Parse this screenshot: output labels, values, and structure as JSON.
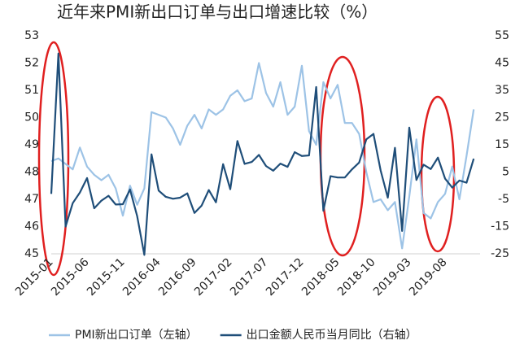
{
  "chart_data": {
    "type": "line",
    "title": "近年来PMI新出口订单与出口增速比较（%）",
    "categories": [
      "2015-01",
      null,
      null,
      null,
      null,
      "2015-06",
      null,
      null,
      null,
      null,
      "2015-11",
      null,
      null,
      null,
      null,
      "2016-04",
      null,
      null,
      null,
      null,
      "2016-09",
      null,
      null,
      null,
      null,
      "2017-02",
      null,
      null,
      null,
      null,
      "2017-07",
      null,
      null,
      null,
      null,
      "2017-12",
      null,
      null,
      null,
      null,
      "2018-05",
      null,
      null,
      null,
      null,
      "2018-10",
      null,
      null,
      null,
      null,
      "2019-03",
      null,
      null,
      null,
      null,
      "2019-08",
      null,
      null,
      null,
      null
    ],
    "series": [
      {
        "name": "PMI新出口订单（左轴）",
        "color": "#9dc3e6",
        "axis": "y",
        "values": [
          48.4,
          48.5,
          48.3,
          48.1,
          48.9,
          48.2,
          47.9,
          47.7,
          47.9,
          47.4,
          46.4,
          47.5,
          46.8,
          47.4,
          50.2,
          50.1,
          50.0,
          49.6,
          49.0,
          49.7,
          50.1,
          49.6,
          50.3,
          50.1,
          50.3,
          50.8,
          51.0,
          50.6,
          50.7,
          52.0,
          50.9,
          50.4,
          51.3,
          50.1,
          50.4,
          51.9,
          49.5,
          49.0,
          51.3,
          50.7,
          51.2,
          49.8,
          49.8,
          49.4,
          48.0,
          46.9,
          47.0,
          46.6,
          46.9,
          45.2,
          47.1,
          49.2,
          46.5,
          46.3,
          46.9,
          47.2,
          48.2,
          47.0,
          48.6,
          50.3
        ]
      },
      {
        "name": "出口金额人民币当月同比（右轴）",
        "color": "#1f4e79",
        "axis": "y2",
        "values": [
          -3,
          48.5,
          -15,
          -6.4,
          -2.5,
          2.8,
          -8.3,
          -5.5,
          -3.7,
          -6.9,
          -6.8,
          -1.4,
          -11.2,
          -25.4,
          11.5,
          -1.8,
          -4.1,
          -4.8,
          -4.4,
          -2.8,
          -10,
          -7.3,
          -1.6,
          -6.1,
          7.9,
          -1.3,
          16.4,
          8,
          8.7,
          11.3,
          7.2,
          5.5,
          8.1,
          6.9,
          12.3,
          10.9,
          11.1,
          36.2,
          -9.2,
          3.5,
          3.0,
          3.0,
          6.0,
          8.5,
          17.0,
          19.0,
          5.6,
          -4.4,
          13.9,
          -16.6,
          21.3,
          2.1,
          7.7,
          6.1,
          10.3,
          2.6,
          -0.7,
          1.9,
          1.1,
          9.9
        ]
      }
    ],
    "ylim": [
      45,
      53
    ],
    "yticks": [
      45,
      46,
      47,
      48,
      49,
      50,
      51,
      52,
      53
    ],
    "y2lim": [
      -25,
      55
    ],
    "y2ticks": [
      -25,
      -15,
      -5,
      5,
      15,
      25,
      35,
      45,
      55
    ],
    "legend": "bottom"
  }
}
